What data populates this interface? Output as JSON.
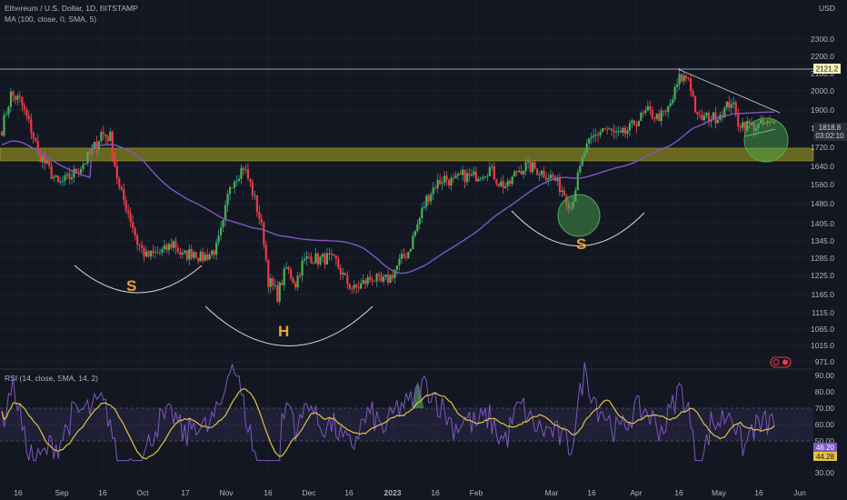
{
  "header": {
    "symbol": "Ethereum / U.S. Dollar, 1D, BITSTAMP",
    "ma": "MA (100, close, 0, SMA, 5)",
    "rsi": "RSI (14, close, SMA, 14, 2)",
    "currency": "USD"
  },
  "chart_data": {
    "type": "candlestick",
    "y_ticks": [
      2300,
      2200,
      2100,
      2000,
      1900,
      1800,
      1720,
      1640,
      1560,
      1480,
      1405,
      1345,
      1285,
      1225,
      1165,
      1115,
      1065,
      1015,
      971
    ],
    "x_ticks": [
      "16",
      "Sep",
      "16",
      "Oct",
      "17",
      "Nov",
      "16",
      "Dec",
      "16",
      "2023",
      "16",
      "Feb",
      "Mar",
      "16",
      "Apr",
      "16",
      "May",
      "16",
      "Jun"
    ],
    "price_tags": {
      "resistance": "2121.2",
      "last_price": "1818.8",
      "countdown": "03:02:10"
    },
    "resistance_level": 2121.2,
    "support_zone": [
      1670,
      1720
    ],
    "pattern_labels": [
      "S",
      "H",
      "S"
    ],
    "rsi_ticks": [
      90,
      80,
      70,
      60,
      50,
      40,
      30
    ],
    "rsi_tags": [
      "46.20",
      "44.28"
    ],
    "close_keyframes": [
      [
        0,
        1800
      ],
      [
        4,
        1980
      ],
      [
        8,
        1950
      ],
      [
        12,
        1830
      ],
      [
        16,
        1700
      ],
      [
        20,
        1640
      ],
      [
        25,
        1560
      ],
      [
        30,
        1590
      ],
      [
        35,
        1640
      ],
      [
        40,
        1700
      ],
      [
        44,
        1780
      ],
      [
        48,
        1760
      ],
      [
        52,
        1540
      ],
      [
        56,
        1450
      ],
      [
        60,
        1340
      ],
      [
        64,
        1290
      ],
      [
        68,
        1300
      ],
      [
        72,
        1310
      ],
      [
        76,
        1340
      ],
      [
        80,
        1290
      ],
      [
        85,
        1310
      ],
      [
        88,
        1285
      ],
      [
        92,
        1300
      ],
      [
        95,
        1320
      ],
      [
        98,
        1400
      ],
      [
        101,
        1560
      ],
      [
        104,
        1600
      ],
      [
        107,
        1640
      ],
      [
        110,
        1560
      ],
      [
        114,
        1430
      ],
      [
        116,
        1350
      ],
      [
        118,
        1210
      ],
      [
        122,
        1165
      ],
      [
        126,
        1250
      ],
      [
        130,
        1200
      ],
      [
        133,
        1265
      ],
      [
        136,
        1290
      ],
      [
        140,
        1280
      ],
      [
        144,
        1285
      ],
      [
        148,
        1270
      ],
      [
        152,
        1210
      ],
      [
        156,
        1180
      ],
      [
        160,
        1200
      ],
      [
        164,
        1220
      ],
      [
        168,
        1200
      ],
      [
        172,
        1220
      ],
      [
        176,
        1270
      ],
      [
        180,
        1310
      ],
      [
        184,
        1400
      ],
      [
        188,
        1500
      ],
      [
        192,
        1560
      ],
      [
        196,
        1590
      ],
      [
        200,
        1570
      ],
      [
        204,
        1600
      ],
      [
        208,
        1590
      ],
      [
        212,
        1610
      ],
      [
        216,
        1630
      ],
      [
        220,
        1570
      ],
      [
        224,
        1550
      ],
      [
        228,
        1620
      ],
      [
        232,
        1640
      ],
      [
        236,
        1630
      ],
      [
        240,
        1610
      ],
      [
        244,
        1590
      ],
      [
        248,
        1540
      ],
      [
        252,
        1470
      ],
      [
        255,
        1590
      ],
      [
        258,
        1700
      ],
      [
        262,
        1760
      ],
      [
        266,
        1800
      ],
      [
        270,
        1780
      ],
      [
        274,
        1760
      ],
      [
        278,
        1800
      ],
      [
        282,
        1850
      ],
      [
        286,
        1890
      ],
      [
        290,
        1860
      ],
      [
        294,
        1880
      ],
      [
        297,
        1960
      ],
      [
        300,
        2070
      ],
      [
        304,
        2080
      ],
      [
        308,
        1850
      ],
      [
        312,
        1860
      ],
      [
        316,
        1860
      ],
      [
        320,
        1900
      ],
      [
        323,
        1950
      ],
      [
        326,
        1830
      ],
      [
        330,
        1820
      ],
      [
        334,
        1810
      ],
      [
        338,
        1820
      ],
      [
        342,
        1818.8
      ]
    ]
  }
}
